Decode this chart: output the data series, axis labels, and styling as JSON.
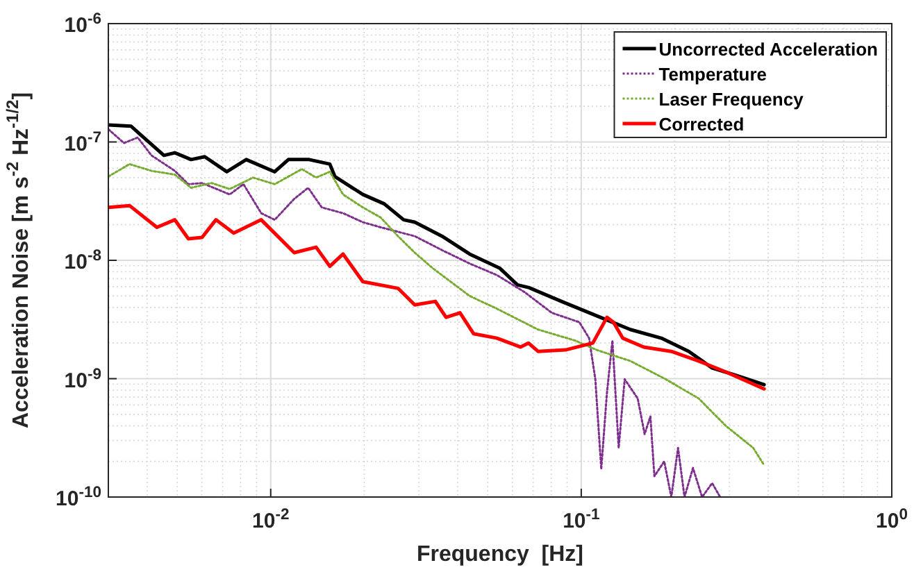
{
  "chart_data": {
    "type": "line",
    "xlabel": "Frequency  [Hz]",
    "ylabel": "Acceleration Noise [m s$^{-2}$ Hz$^{-1/2}$]",
    "log": "xy",
    "grid": true,
    "legend": "top right",
    "marker": "none",
    "xlim": [
      0.003,
      1
    ],
    "ylim": [
      1e-10,
      1e-06
    ],
    "xticks": [
      {
        "value": 0.01,
        "label": "10$^{-2}$"
      },
      {
        "value": 0.1,
        "label": "10$^{-1}$"
      },
      {
        "value": 1,
        "label": "10$^{0}$"
      }
    ],
    "yticks": [
      {
        "value": 1e-10,
        "label": "10$^{-10}$"
      },
      {
        "value": 1e-09,
        "label": "10$^{-9}$"
      },
      {
        "value": 1e-08,
        "label": "10$^{-8}$"
      },
      {
        "value": 1e-07,
        "label": "10$^{-7}$"
      },
      {
        "value": 1e-06,
        "label": "10$^{-6}$"
      }
    ],
    "series": [
      {
        "name": "Uncorrected Acceleration",
        "color": "#000000",
        "line_style": "solid",
        "x": [
          0.003,
          0.00355,
          0.00381,
          0.00453,
          0.00491,
          0.00554,
          0.00613,
          0.00722,
          0.00834,
          0.0103,
          0.0114,
          0.0133,
          0.0155,
          0.0161,
          0.0198,
          0.0232,
          0.0268,
          0.0291,
          0.0356,
          0.0437,
          0.0546,
          0.0623,
          0.0676,
          0.0863,
          0.112,
          0.144,
          0.181,
          0.222,
          0.264,
          0.311,
          0.388
        ],
        "values": [
          1.39e-07,
          1.36e-07,
          1.15e-07,
          7.7e-08,
          8.1e-08,
          7.1e-08,
          7.5e-08,
          5.6e-08,
          7.1e-08,
          5.6e-08,
          7.1e-08,
          7.1e-08,
          6.5e-08,
          5.1e-08,
          3.6e-08,
          3e-08,
          2.2e-08,
          2.1e-08,
          1.6e-08,
          1.13e-08,
          8.6e-09,
          6.2e-09,
          5.9e-09,
          4.5e-09,
          3.4e-09,
          2.6e-09,
          2.2e-09,
          1.7e-09,
          1.23e-09,
          1.08e-09,
          8.9e-10
        ]
      },
      {
        "name": "Temperature",
        "color": "#7e2f8e",
        "line_style": "dotted",
        "x": [
          0.003,
          0.00337,
          0.00373,
          0.00413,
          0.00491,
          0.00543,
          0.00601,
          0.00738,
          0.00817,
          0.00932,
          0.0103,
          0.0119,
          0.0132,
          0.0146,
          0.0171,
          0.0198,
          0.0226,
          0.0291,
          0.0356,
          0.0437,
          0.0535,
          0.0656,
          0.0804,
          0.0986,
          0.106,
          0.111,
          0.116,
          0.121,
          0.126,
          0.132,
          0.138,
          0.152,
          0.16,
          0.167,
          0.172,
          0.185,
          0.195,
          0.205,
          0.215,
          0.229,
          0.245,
          0.264,
          0.28
        ],
        "values": [
          1.28e-07,
          9.8e-08,
          1.09e-07,
          7.7e-08,
          5.7e-08,
          4.4e-08,
          4.5e-08,
          3.6e-08,
          4.4e-08,
          2.5e-08,
          2.2e-08,
          3.3e-08,
          4.1e-08,
          2.8e-08,
          2.5e-08,
          2.1e-08,
          1.9e-08,
          1.6e-08,
          1.22e-08,
          9.4e-09,
          7.5e-09,
          5.4e-09,
          3.6e-09,
          3e-09,
          2.2e-09,
          9.9e-10,
          1.72e-10,
          7.6e-10,
          2.1e-09,
          2.6e-10,
          9.9e-10,
          6.8e-10,
          3.4e-10,
          4.8e-10,
          1.5e-10,
          2e-10,
          1e-10,
          2.6e-10,
          1e-10,
          1.76e-10,
          1e-10,
          1.31e-10,
          1e-10
        ]
      },
      {
        "name": "Laser Frequency",
        "color": "#77ac30",
        "line_style": "dotted",
        "x": [
          0.003,
          0.00351,
          0.00413,
          0.00491,
          0.00554,
          0.00645,
          0.00738,
          0.00877,
          0.0103,
          0.0126,
          0.014,
          0.0155,
          0.0171,
          0.0198,
          0.0226,
          0.0257,
          0.0291,
          0.0332,
          0.0437,
          0.0535,
          0.0726,
          0.0955,
          0.112,
          0.144,
          0.187,
          0.239,
          0.292,
          0.358,
          0.388
        ],
        "values": [
          5.1e-08,
          6.5e-08,
          5.7e-08,
          5.3e-08,
          4.1e-08,
          4.5e-08,
          4e-08,
          5e-08,
          4.4e-08,
          5.9e-08,
          5e-08,
          5.6e-08,
          3.6e-08,
          2.8e-08,
          2.3e-08,
          1.6e-08,
          1.16e-08,
          8.6e-09,
          5e-09,
          3.9e-09,
          2.6e-09,
          2.1e-09,
          1.75e-09,
          1.41e-09,
          9.9e-10,
          6.8e-10,
          4e-10,
          2.6e-10,
          1.86e-10
        ]
      },
      {
        "name": "Corrected",
        "color": "#ff0000",
        "line_style": "solid",
        "x": [
          0.003,
          0.00351,
          0.0043,
          0.00491,
          0.00543,
          0.00601,
          0.00666,
          0.0076,
          0.00932,
          0.0119,
          0.014,
          0.0155,
          0.0171,
          0.0198,
          0.0257,
          0.0291,
          0.0339,
          0.0367,
          0.0407,
          0.045,
          0.0535,
          0.0637,
          0.0676,
          0.0726,
          0.089,
          0.109,
          0.121,
          0.127,
          0.136,
          0.159,
          0.195,
          0.239,
          0.292,
          0.388
        ],
        "values": [
          2.8e-08,
          2.9e-08,
          1.9e-08,
          2.2e-08,
          1.52e-08,
          1.56e-08,
          2.2e-08,
          1.7e-08,
          2.2e-08,
          1.16e-08,
          1.29e-08,
          8.9e-09,
          1.13e-08,
          6.6e-09,
          5.8e-09,
          4.2e-09,
          4.5e-09,
          3.3e-09,
          3.6e-09,
          2.4e-09,
          2.2e-09,
          1.85e-09,
          2e-09,
          1.7e-09,
          1.75e-09,
          2e-09,
          3.3e-09,
          3e-09,
          2.2e-09,
          1.85e-09,
          1.7e-09,
          1.41e-09,
          1.14e-09,
          8.2e-10
        ]
      }
    ]
  }
}
